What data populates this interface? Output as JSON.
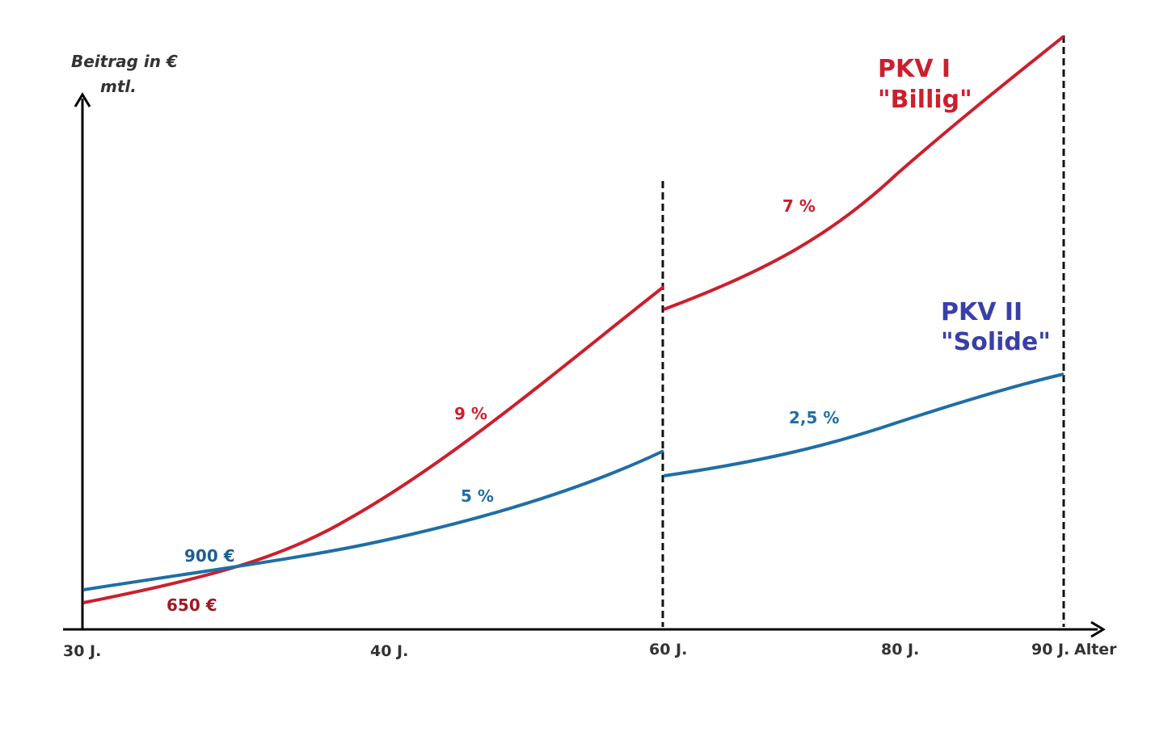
{
  "chart_data": {
    "type": "line",
    "y_axis_label_line1": "Beitrag in €",
    "y_axis_label_line2": "mtl.",
    "x_axis_label": "Alter",
    "x_ticks": [
      "30 J.",
      "40 J.",
      "60 J.",
      "80 J.",
      "90 J."
    ],
    "phase_boundaries": [
      "60 J.",
      "90 J."
    ],
    "series": [
      {
        "name_line1": "PKV I",
        "name_line2": "\"Billig\"",
        "color": "#cc1f2d",
        "start_label": "650 €",
        "start_label_color": "#9e1b22",
        "rate_phase1": "9 %",
        "rate_phase2": "7 %"
      },
      {
        "name_line1": "PKV II",
        "name_line2": "\"Solide\"",
        "color": "#1f6ea6",
        "name_color": "#3a3fa8",
        "start_label": "900 €",
        "start_label_color": "#1f5f8f",
        "rate_phase1": "5 %",
        "rate_phase2": "2,5 %"
      }
    ]
  }
}
